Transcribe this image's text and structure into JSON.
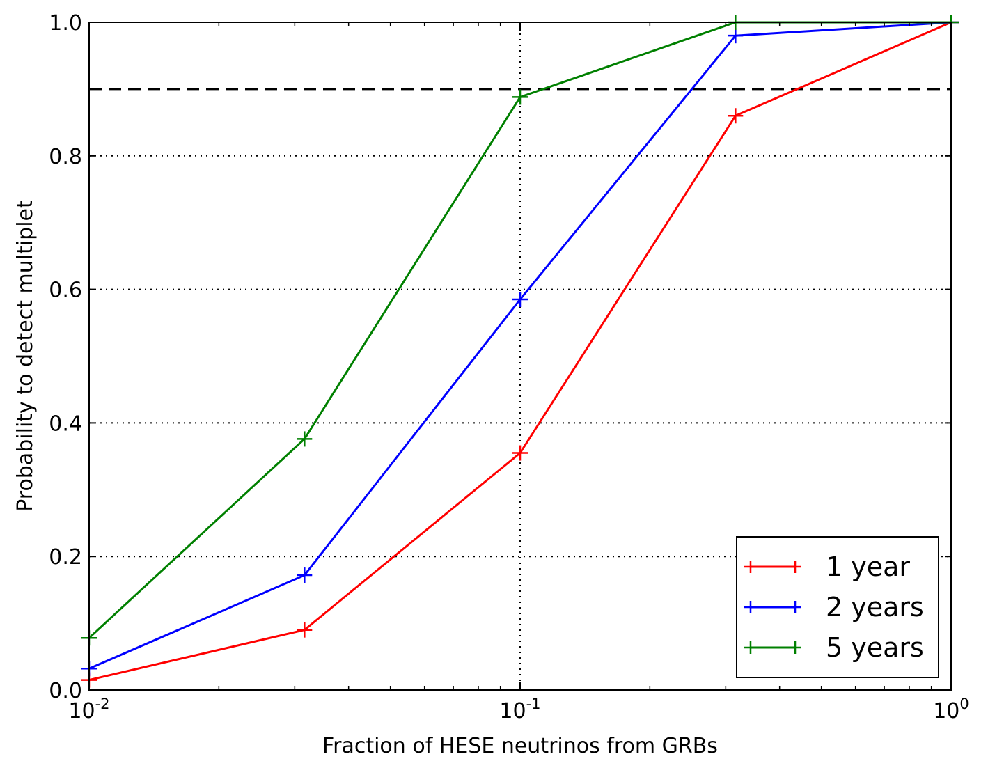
{
  "chart_data": {
    "type": "line",
    "xscale": "log",
    "xlim": [
      0.01,
      1
    ],
    "ylim": [
      0,
      1
    ],
    "xlabel": "Fraction of HESE neutrinos from GRBs",
    "ylabel": "Probability to detect multiplet",
    "x_ticks": [
      {
        "value": 0.01,
        "base": "10",
        "exp": "-2"
      },
      {
        "value": 0.1,
        "base": "10",
        "exp": "-1"
      },
      {
        "value": 1,
        "base": "10",
        "exp": "0"
      }
    ],
    "y_ticks": [
      {
        "value": 0,
        "label": "0.0"
      },
      {
        "value": 0.2,
        "label": "0.2"
      },
      {
        "value": 0.4,
        "label": "0.4"
      },
      {
        "value": 0.6,
        "label": "0.6"
      },
      {
        "value": 0.8,
        "label": "0.8"
      },
      {
        "value": 1,
        "label": "1.0"
      }
    ],
    "grid": true,
    "reference_line": {
      "y": 0.9,
      "style": "dashed",
      "color": "#000000"
    },
    "legend_position": "bottom-right",
    "x": [
      0.01,
      0.0316,
      0.1,
      0.316,
      1
    ],
    "series": [
      {
        "name": "1 year",
        "color": "#ff0000",
        "values": [
          0.015,
          0.09,
          0.355,
          0.86,
          1.0
        ]
      },
      {
        "name": "2 years",
        "color": "#0000ff",
        "values": [
          0.032,
          0.172,
          0.585,
          0.98,
          1.0
        ]
      },
      {
        "name": "5 years",
        "color": "#008000",
        "values": [
          0.078,
          0.376,
          0.888,
          1.0,
          1.0
        ]
      }
    ]
  }
}
